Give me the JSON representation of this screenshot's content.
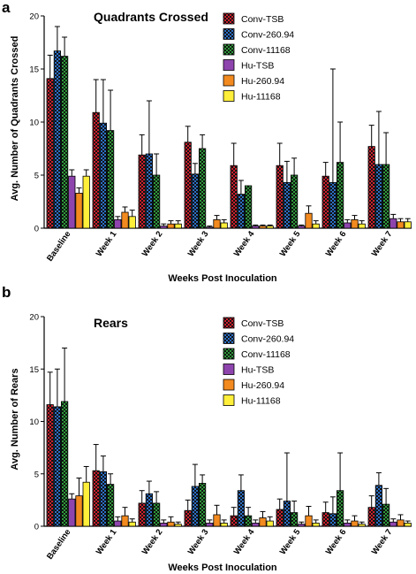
{
  "chart_data": [
    {
      "type": "bar",
      "panel": "a",
      "title": "Quadrants Crossed",
      "xlabel": "Weeks Post Inoculation",
      "ylabel": "Avg. Number of Quadrants Crossed",
      "ylim": [
        0,
        20
      ],
      "yticks": [
        0,
        5,
        10,
        15,
        20
      ],
      "grid": false,
      "legend_position": "top-right",
      "categories": [
        "Baseline",
        "Week 1",
        "Week 2",
        "Week 3",
        "Week 4",
        "Week 5",
        "Week 6",
        "Week 7"
      ],
      "series": [
        {
          "name": "Conv-TSB",
          "color": "#cc1f2d",
          "pattern": "checker",
          "values": [
            14.1,
            10.9,
            6.9,
            8.1,
            5.9,
            5.9,
            4.9,
            7.7
          ],
          "error": [
            2.2,
            3.1,
            1.9,
            1.5,
            2.1,
            2.1,
            1.3,
            2.0
          ]
        },
        {
          "name": "Conv-260.94",
          "color": "#2b6fc4",
          "pattern": "checker",
          "values": [
            16.7,
            9.9,
            7.0,
            5.1,
            3.2,
            4.3,
            4.3,
            6.0
          ],
          "error": [
            2.3,
            4.1,
            5.0,
            1.0,
            1.3,
            2.0,
            10.7,
            5.0
          ]
        },
        {
          "name": "Conv-11168",
          "color": "#2e9a3a",
          "pattern": "checker",
          "values": [
            16.2,
            9.2,
            5.0,
            7.5,
            4.0,
            5.0,
            6.2,
            6.0
          ],
          "error": [
            1.8,
            3.8,
            2.0,
            1.3,
            0.0,
            1.6,
            3.8,
            3.0
          ]
        },
        {
          "name": "Hu-TSB",
          "color": "#8e44ad",
          "pattern": "solid",
          "values": [
            4.9,
            0.8,
            0.2,
            0.1,
            0.2,
            0.2,
            0.5,
            0.9
          ],
          "error": [
            0.6,
            0.3,
            0.2,
            0.1,
            0.1,
            0.1,
            0.3,
            0.4
          ]
        },
        {
          "name": "Hu-260.94",
          "color": "#f28a1f",
          "pattern": "solid",
          "values": [
            3.3,
            1.5,
            0.4,
            0.8,
            0.2,
            1.4,
            0.8,
            0.6
          ],
          "error": [
            0.5,
            0.5,
            0.3,
            0.4,
            0.1,
            0.7,
            0.4,
            0.3
          ]
        },
        {
          "name": "Hu-11168",
          "color": "#ffee3a",
          "pattern": "solid",
          "values": [
            4.9,
            1.1,
            0.4,
            0.5,
            0.2,
            0.4,
            0.4,
            0.6
          ],
          "error": [
            0.6,
            0.6,
            0.3,
            0.3,
            0.1,
            0.3,
            0.3,
            0.3
          ]
        }
      ]
    },
    {
      "type": "bar",
      "panel": "b",
      "title": "Rears",
      "xlabel": "Weeks Post Inoculation",
      "ylabel": "Avg. Number of Rears",
      "ylim": [
        0,
        20
      ],
      "yticks": [
        0,
        5,
        10,
        15,
        20
      ],
      "grid": false,
      "legend_position": "top-right",
      "categories": [
        "Baseline",
        "Week 1",
        "Week 2",
        "Week 3",
        "Week 4",
        "Week 5",
        "Week 6",
        "Week 7"
      ],
      "series": [
        {
          "name": "Conv-TSB",
          "color": "#cc1f2d",
          "pattern": "checker",
          "values": [
            11.6,
            5.3,
            2.2,
            1.5,
            1.0,
            1.6,
            1.3,
            1.8
          ],
          "error": [
            3.1,
            2.5,
            1.2,
            1.0,
            0.8,
            1.0,
            1.0,
            1.1
          ]
        },
        {
          "name": "Conv-260.94",
          "color": "#2b6fc4",
          "pattern": "checker",
          "values": [
            11.4,
            5.2,
            3.1,
            3.8,
            3.4,
            2.4,
            1.2,
            3.9
          ],
          "error": [
            3.6,
            1.5,
            1.2,
            2.1,
            1.5,
            4.6,
            1.6,
            1.2
          ]
        },
        {
          "name": "Conv-11168",
          "color": "#2e9a3a",
          "pattern": "checker",
          "values": [
            11.9,
            4.0,
            2.2,
            4.1,
            1.0,
            1.3,
            3.4,
            2.1
          ],
          "error": [
            5.1,
            1.0,
            1.1,
            0.8,
            0.8,
            1.1,
            3.6,
            1.5
          ]
        },
        {
          "name": "Hu-TSB",
          "color": "#8e44ad",
          "pattern": "solid",
          "values": [
            2.6,
            0.5,
            0.3,
            0.3,
            0.3,
            0.2,
            0.3,
            0.4
          ],
          "error": [
            0.5,
            0.4,
            0.3,
            0.3,
            0.3,
            0.2,
            0.3,
            0.3
          ]
        },
        {
          "name": "Hu-260.94",
          "color": "#f28a1f",
          "pattern": "solid",
          "values": [
            2.9,
            1.0,
            0.4,
            1.1,
            0.8,
            1.0,
            0.5,
            0.6
          ],
          "error": [
            1.7,
            0.8,
            0.5,
            0.9,
            0.6,
            0.9,
            0.5,
            0.5
          ]
        },
        {
          "name": "Hu-11168",
          "color": "#ffee3a",
          "pattern": "solid",
          "values": [
            4.2,
            0.4,
            0.2,
            0.3,
            0.5,
            0.3,
            0.2,
            0.3
          ],
          "error": [
            1.5,
            0.3,
            0.2,
            0.3,
            0.4,
            0.3,
            0.2,
            0.2
          ]
        }
      ]
    }
  ]
}
